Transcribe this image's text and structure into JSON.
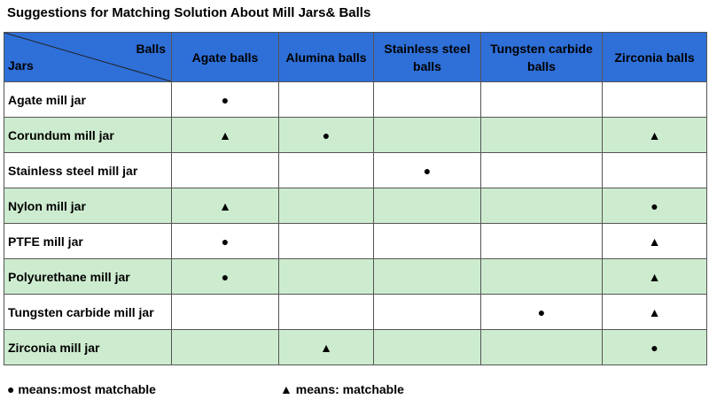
{
  "title": "Suggestions for Matching Solution About Mill Jars& Balls",
  "corner": {
    "balls_label": "Balls",
    "jars_label": "Jars"
  },
  "columns": [
    "Agate balls",
    "Alumina balls",
    "Stainless steel balls",
    "Tungsten carbide balls",
    "Zirconia balls"
  ],
  "rows": [
    {
      "jar": "Agate mill jar",
      "marks": [
        "●",
        "",
        "",
        "",
        ""
      ]
    },
    {
      "jar": "Corundum mill jar",
      "marks": [
        "▲",
        "●",
        "",
        "",
        "▲"
      ]
    },
    {
      "jar": "Stainless steel mill jar",
      "marks": [
        "",
        "",
        "●",
        "",
        ""
      ]
    },
    {
      "jar": "Nylon mill jar",
      "marks": [
        "▲",
        "",
        "",
        "",
        "●"
      ]
    },
    {
      "jar": "PTFE mill jar",
      "marks": [
        "●",
        "",
        "",
        "",
        "▲"
      ]
    },
    {
      "jar": "Polyurethane mill jar",
      "marks": [
        "●",
        "",
        "",
        "",
        "▲"
      ]
    },
    {
      "jar": "Tungsten carbide mill jar",
      "marks": [
        "",
        "",
        "",
        "●",
        "▲"
      ]
    },
    {
      "jar": "Zirconia mill jar",
      "marks": [
        "",
        "▲",
        "",
        "",
        "●"
      ]
    }
  ],
  "legend": {
    "most_matchable": "● means:most matchable",
    "matchable": "▲ means: matchable"
  },
  "colors": {
    "header_bg": "#2e6fd8",
    "shaded_row_bg": "#cdeccf",
    "plain_row_bg": "#ffffff"
  }
}
